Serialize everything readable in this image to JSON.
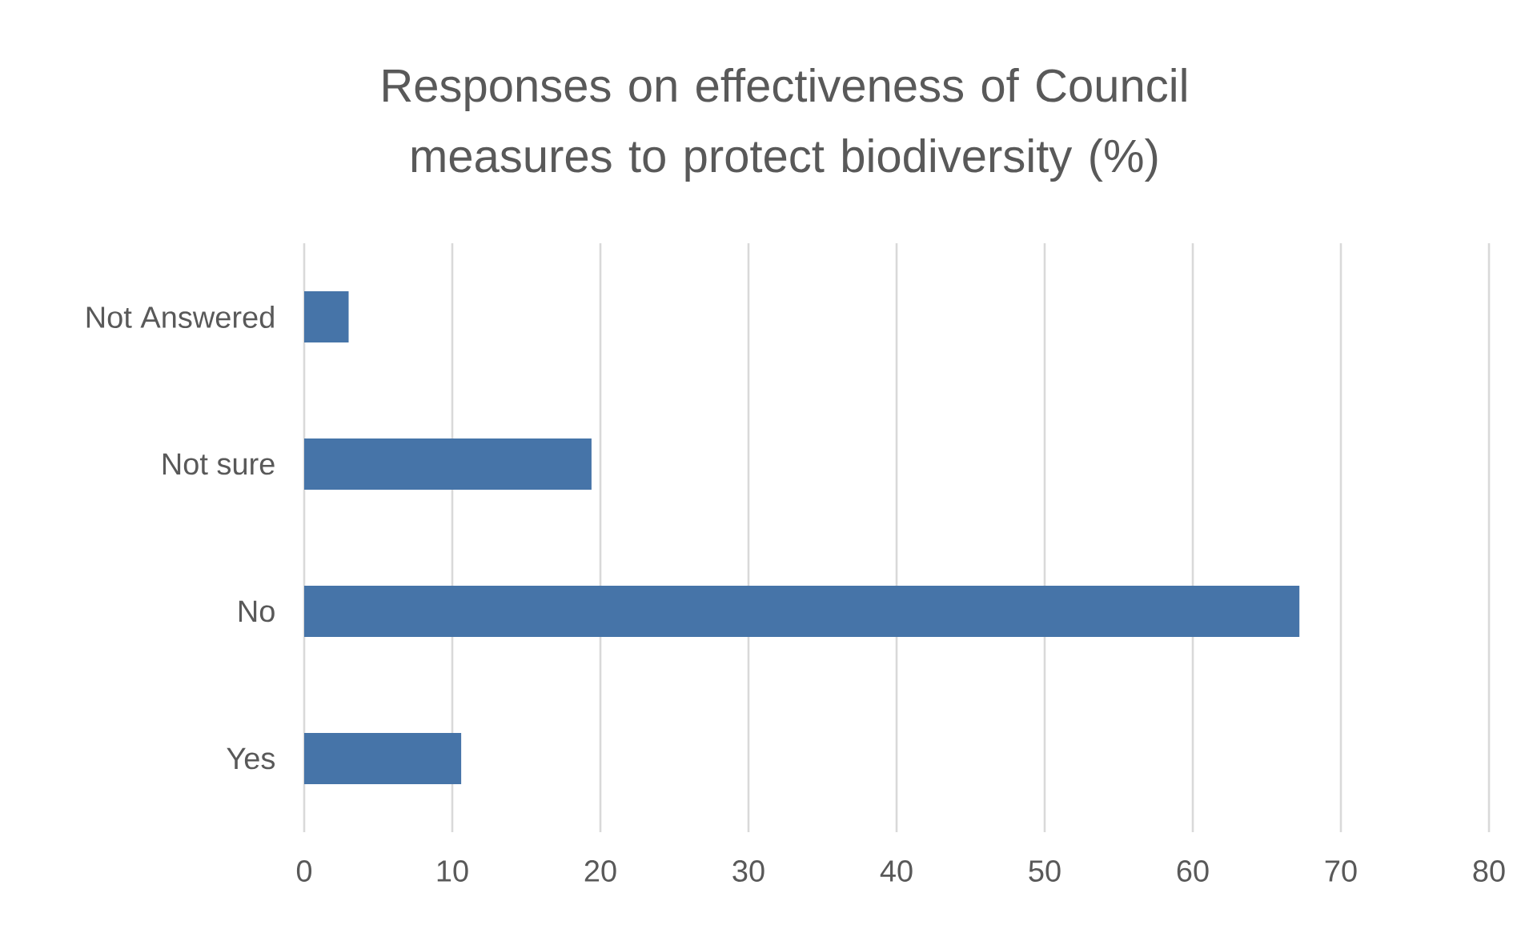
{
  "chart_data": {
    "type": "bar",
    "orientation": "horizontal",
    "title": "Responses on effectiveness of Council measures to protect biodiversity (%)",
    "categories": [
      "Not Answered",
      "Not sure",
      "No",
      "Yes"
    ],
    "values": [
      3.0,
      19.4,
      67.2,
      10.6
    ],
    "color": "#4674a8",
    "xlim": [
      0,
      80
    ],
    "xticks": [
      0,
      10,
      20,
      30,
      40,
      50,
      60,
      70,
      80
    ],
    "grid": "x"
  }
}
